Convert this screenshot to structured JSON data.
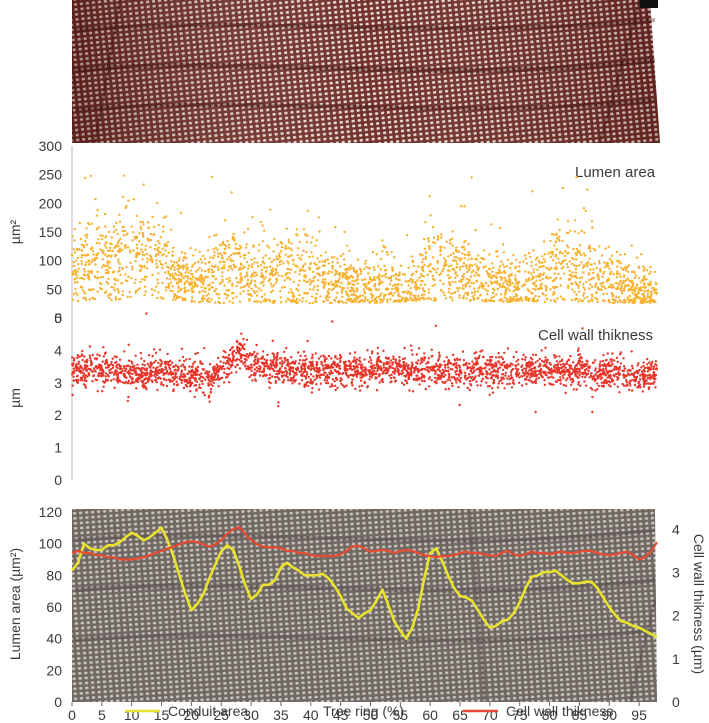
{
  "chart_data": [
    {
      "type": "scatter",
      "panel": "micrograph-top",
      "image": "wood cross-section micrograph (reddish-brown)",
      "colors": {
        "background": "#6e2a24",
        "cells": "#e8d8d0"
      }
    },
    {
      "type": "scatter",
      "title": "Lumen area",
      "ylabel": "µm²",
      "ylim": [
        0,
        300
      ],
      "yticks": [
        "0",
        "50",
        "100",
        "150",
        "200",
        "250",
        "300"
      ],
      "xlim": [
        0,
        98
      ],
      "color": "#f7b12e",
      "band_lower": [
        [
          0,
          28
        ],
        [
          3,
          30
        ],
        [
          10,
          32
        ],
        [
          16,
          32
        ],
        [
          20,
          28
        ],
        [
          25,
          26
        ],
        [
          30,
          26
        ],
        [
          40,
          26
        ],
        [
          50,
          26
        ],
        [
          55,
          28
        ],
        [
          60,
          30
        ],
        [
          65,
          30
        ],
        [
          70,
          28
        ],
        [
          75,
          28
        ],
        [
          80,
          28
        ],
        [
          85,
          28
        ],
        [
          90,
          26
        ],
        [
          98,
          26
        ]
      ],
      "band_center": [
        [
          0,
          85
        ],
        [
          3,
          95
        ],
        [
          6,
          100
        ],
        [
          9,
          105
        ],
        [
          12,
          102
        ],
        [
          15,
          95
        ],
        [
          18,
          70
        ],
        [
          21,
          60
        ],
        [
          24,
          70
        ],
        [
          26,
          90
        ],
        [
          28,
          80
        ],
        [
          30,
          68
        ],
        [
          33,
          70
        ],
        [
          36,
          75
        ],
        [
          39,
          72
        ],
        [
          42,
          70
        ],
        [
          45,
          60
        ],
        [
          48,
          50
        ],
        [
          51,
          55
        ],
        [
          53,
          65
        ],
        [
          56,
          40
        ],
        [
          58,
          60
        ],
        [
          61,
          95
        ],
        [
          64,
          85
        ],
        [
          67,
          70
        ],
        [
          70,
          60
        ],
        [
          73,
          50
        ],
        [
          76,
          55
        ],
        [
          79,
          75
        ],
        [
          82,
          90
        ],
        [
          85,
          80
        ],
        [
          88,
          70
        ],
        [
          91,
          60
        ],
        [
          94,
          50
        ],
        [
          98,
          40
        ]
      ],
      "band_upper": [
        [
          0,
          160
        ],
        [
          3,
          180
        ],
        [
          6,
          190
        ],
        [
          9,
          210
        ],
        [
          12,
          190
        ],
        [
          15,
          180
        ],
        [
          18,
          120
        ],
        [
          21,
          110
        ],
        [
          24,
          150
        ],
        [
          26,
          180
        ],
        [
          28,
          160
        ],
        [
          30,
          140
        ],
        [
          33,
          150
        ],
        [
          36,
          160
        ],
        [
          39,
          150
        ],
        [
          42,
          140
        ],
        [
          45,
          120
        ],
        [
          48,
          100
        ],
        [
          51,
          110
        ],
        [
          53,
          130
        ],
        [
          56,
          90
        ],
        [
          58,
          120
        ],
        [
          61,
          190
        ],
        [
          64,
          170
        ],
        [
          67,
          140
        ],
        [
          70,
          120
        ],
        [
          73,
          110
        ],
        [
          76,
          120
        ],
        [
          79,
          150
        ],
        [
          82,
          170
        ],
        [
          85,
          160
        ],
        [
          88,
          140
        ],
        [
          91,
          120
        ],
        [
          94,
          100
        ],
        [
          98,
          80
        ]
      ]
    },
    {
      "type": "scatter",
      "title": "Cell wall thikness",
      "ylabel": "µm",
      "ylim": [
        0,
        5
      ],
      "yticks": [
        "0",
        "1",
        "2",
        "3",
        "4",
        "5"
      ],
      "xlim": [
        0,
        98
      ],
      "color": "#e8352a",
      "band_center": [
        [
          0,
          3.4
        ],
        [
          10,
          3.35
        ],
        [
          20,
          3.3
        ],
        [
          23,
          3.1
        ],
        [
          26,
          3.6
        ],
        [
          28,
          3.9
        ],
        [
          30,
          3.6
        ],
        [
          40,
          3.35
        ],
        [
          50,
          3.4
        ],
        [
          60,
          3.4
        ],
        [
          70,
          3.35
        ],
        [
          80,
          3.4
        ],
        [
          90,
          3.3
        ],
        [
          95,
          3.1
        ],
        [
          98,
          3.4
        ]
      ],
      "spread": 0.45
    },
    {
      "type": "line",
      "background": "wood cross-section micrograph (grey)",
      "xlabel": "Tree ring (%)",
      "xlim": [
        0,
        98
      ],
      "xticks": [
        "0",
        "5",
        "10",
        "15",
        "20",
        "25",
        "30",
        "35",
        "40",
        "45",
        "50",
        "55",
        "60",
        "65",
        "70",
        "75",
        "80",
        "85",
        "90",
        "95"
      ],
      "ylabel_left": "Lumen area (µm²)",
      "ylim_left": [
        0,
        120
      ],
      "yticks_left": [
        "0",
        "20",
        "40",
        "60",
        "80",
        "100",
        "120"
      ],
      "ylabel_right": "Cell wall thikness (µm)",
      "ylim_right": [
        0,
        4.4
      ],
      "yticks_right": [
        "0",
        "1",
        "2",
        "3",
        "4"
      ],
      "series": [
        {
          "name": "Conduit area",
          "axis": "left",
          "color": "#e9e32e",
          "x": [
            0,
            1,
            2,
            3,
            4,
            5,
            6,
            7,
            8,
            9,
            10,
            11,
            12,
            13,
            14,
            15,
            16,
            17,
            18,
            19,
            20,
            21,
            22,
            23,
            24,
            25,
            26,
            27,
            28,
            29,
            30,
            31,
            32,
            33,
            34,
            35,
            36,
            37,
            38,
            39,
            40,
            41,
            42,
            43,
            44,
            45,
            46,
            47,
            48,
            49,
            50,
            51,
            52,
            53,
            54,
            55,
            56,
            57,
            58,
            59,
            60,
            61,
            62,
            63,
            64,
            65,
            66,
            67,
            68,
            69,
            70,
            71,
            72,
            73,
            74,
            75,
            76,
            77,
            78,
            79,
            80,
            81,
            82,
            83,
            84,
            85,
            86,
            87,
            88,
            89,
            90,
            91,
            92,
            93,
            94,
            95,
            96,
            97,
            98
          ],
          "values": [
            83,
            88,
            100,
            97,
            96,
            96,
            99,
            99,
            101,
            104,
            107,
            105,
            102,
            104,
            107,
            110,
            102,
            92,
            80,
            68,
            58,
            62,
            68,
            78,
            87,
            95,
            99,
            96,
            86,
            74,
            65,
            68,
            74,
            74,
            77,
            85,
            88,
            85,
            83,
            80,
            80,
            80,
            81,
            78,
            73,
            67,
            59,
            56,
            53,
            56,
            58,
            64,
            71,
            61,
            51,
            45,
            40,
            47,
            59,
            78,
            94,
            97,
            89,
            80,
            72,
            67,
            66,
            64,
            58,
            52,
            47,
            48,
            51,
            52,
            56,
            63,
            72,
            79,
            80,
            82,
            82,
            83,
            80,
            77,
            75,
            75,
            76,
            76,
            72,
            66,
            60,
            55,
            51,
            50,
            48,
            47,
            45,
            43,
            41
          ]
        },
        {
          "name": "Cell wall thikness",
          "axis": "right",
          "color": "#e84a32",
          "x": [
            0,
            1,
            2,
            3,
            4,
            5,
            6,
            7,
            8,
            9,
            10,
            11,
            12,
            13,
            14,
            15,
            16,
            17,
            18,
            19,
            20,
            21,
            22,
            23,
            24,
            25,
            26,
            27,
            28,
            29,
            30,
            31,
            32,
            33,
            34,
            35,
            36,
            37,
            38,
            39,
            40,
            41,
            42,
            43,
            44,
            45,
            46,
            47,
            48,
            49,
            50,
            51,
            52,
            53,
            54,
            55,
            56,
            57,
            58,
            59,
            60,
            61,
            62,
            63,
            64,
            65,
            66,
            67,
            68,
            69,
            70,
            71,
            72,
            73,
            74,
            75,
            76,
            77,
            78,
            79,
            80,
            81,
            82,
            83,
            84,
            85,
            86,
            87,
            88,
            89,
            90,
            91,
            92,
            93,
            94,
            95,
            96,
            97,
            98
          ],
          "values": [
            3.45,
            3.5,
            3.45,
            3.45,
            3.4,
            3.4,
            3.35,
            3.35,
            3.3,
            3.3,
            3.3,
            3.32,
            3.35,
            3.4,
            3.45,
            3.5,
            3.55,
            3.6,
            3.65,
            3.7,
            3.72,
            3.7,
            3.65,
            3.6,
            3.65,
            3.75,
            3.9,
            4.0,
            4.05,
            3.9,
            3.75,
            3.65,
            3.6,
            3.58,
            3.58,
            3.56,
            3.5,
            3.5,
            3.45,
            3.45,
            3.4,
            3.38,
            3.38,
            3.38,
            3.38,
            3.42,
            3.5,
            3.6,
            3.62,
            3.55,
            3.48,
            3.5,
            3.52,
            3.5,
            3.45,
            3.5,
            3.52,
            3.5,
            3.45,
            3.4,
            3.38,
            3.35,
            3.38,
            3.38,
            3.4,
            3.45,
            3.48,
            3.45,
            3.45,
            3.42,
            3.4,
            3.38,
            3.45,
            3.5,
            3.42,
            3.38,
            3.42,
            3.48,
            3.45,
            3.45,
            3.42,
            3.45,
            3.48,
            3.45,
            3.45,
            3.48,
            3.5,
            3.5,
            3.45,
            3.42,
            3.4,
            3.42,
            3.45,
            3.48,
            3.4,
            3.3,
            3.35,
            3.48,
            3.7
          ]
        }
      ],
      "legend": [
        "Conduit area",
        "Tree ring (%)",
        "Cell wall thikness"
      ]
    }
  ]
}
